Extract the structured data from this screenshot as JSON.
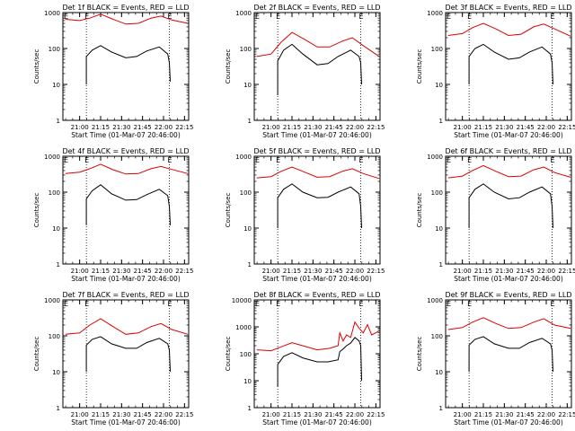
{
  "figure": {
    "ylabel": "Counts/sec",
    "xlabel": "Start Time (01-Mar-07 20:46:00)",
    "marker_label": "E",
    "x_tick_labels": [
      "21:00",
      "21:15",
      "21:30",
      "21:45",
      "22:00",
      "22:15"
    ],
    "colors": {
      "events": "#000000",
      "lld": "#dd0000",
      "axes": "#000000",
      "background": "#ffffff"
    }
  },
  "chart_data": [
    {
      "type": "line",
      "title": "Det 1f BLACK = Events, RED = LLD",
      "ylim": [
        1,
        1000
      ],
      "yscale": "log",
      "y_tick_labels": [
        "1",
        "10",
        "100",
        "1000"
      ],
      "xlim": [
        20.8,
        22.3
      ],
      "x_tick_values": [
        21.0,
        21.25,
        21.5,
        21.75,
        22.0,
        22.25
      ],
      "vlines": [
        21.08,
        22.07
      ],
      "series": [
        {
          "name": "Events",
          "color": "#000000",
          "x": [
            21.08,
            21.08,
            21.15,
            21.25,
            21.38,
            21.55,
            21.68,
            21.8,
            21.95,
            22.05,
            22.07,
            22.08
          ],
          "y": [
            10,
            60,
            90,
            120,
            80,
            55,
            60,
            85,
            110,
            70,
            40,
            12
          ]
        },
        {
          "name": "LLD",
          "color": "#dd0000",
          "x": [
            20.83,
            21.0,
            21.12,
            21.25,
            21.4,
            21.55,
            21.7,
            21.85,
            21.97,
            22.1,
            22.29
          ],
          "y": [
            650,
            600,
            700,
            900,
            650,
            480,
            500,
            700,
            800,
            620,
            500
          ]
        }
      ]
    },
    {
      "type": "line",
      "title": "Det 2f BLACK = Events, RED = LLD",
      "ylim": [
        1,
        1000
      ],
      "yscale": "log",
      "y_tick_labels": [
        "1",
        "10",
        "100",
        "1000"
      ],
      "xlim": [
        20.8,
        22.3
      ],
      "x_tick_values": [
        21.0,
        21.25,
        21.5,
        21.75,
        22.0,
        22.25
      ],
      "vlines": [
        21.08,
        22.07
      ],
      "series": [
        {
          "name": "Events",
          "color": "#000000",
          "x": [
            21.08,
            21.08,
            21.15,
            21.25,
            21.38,
            21.55,
            21.68,
            21.8,
            21.95,
            22.05,
            22.07,
            22.08
          ],
          "y": [
            5,
            45,
            90,
            130,
            70,
            35,
            38,
            60,
            90,
            60,
            40,
            10
          ]
        },
        {
          "name": "LLD",
          "color": "#dd0000",
          "x": [
            20.83,
            21.0,
            21.12,
            21.25,
            21.4,
            21.55,
            21.7,
            21.85,
            21.97,
            22.1,
            22.29
          ],
          "y": [
            60,
            70,
            150,
            280,
            180,
            110,
            110,
            160,
            200,
            120,
            60
          ]
        }
      ]
    },
    {
      "type": "line",
      "title": "Det 3f BLACK = Events, RED = LLD",
      "ylim": [
        1,
        1000
      ],
      "yscale": "log",
      "y_tick_labels": [
        "1",
        "10",
        "100",
        "1000"
      ],
      "xlim": [
        20.8,
        22.3
      ],
      "x_tick_values": [
        21.0,
        21.25,
        21.5,
        21.75,
        22.0,
        22.25
      ],
      "vlines": [
        21.08,
        22.07
      ],
      "series": [
        {
          "name": "Events",
          "color": "#000000",
          "x": [
            21.08,
            21.08,
            21.15,
            21.25,
            21.38,
            21.55,
            21.68,
            21.8,
            21.95,
            22.05,
            22.07,
            22.08
          ],
          "y": [
            10,
            60,
            100,
            130,
            80,
            50,
            55,
            80,
            110,
            70,
            40,
            10
          ]
        },
        {
          "name": "LLD",
          "color": "#dd0000",
          "x": [
            20.83,
            21.0,
            21.12,
            21.25,
            21.4,
            21.55,
            21.7,
            21.85,
            21.97,
            22.1,
            22.29
          ],
          "y": [
            230,
            260,
            380,
            500,
            350,
            230,
            250,
            400,
            480,
            350,
            220
          ]
        }
      ]
    },
    {
      "type": "line",
      "title": "Det 4f BLACK = Events, RED = LLD",
      "ylim": [
        1,
        1000
      ],
      "yscale": "log",
      "y_tick_labels": [
        "1",
        "10",
        "100",
        "1000"
      ],
      "xlim": [
        20.8,
        22.3
      ],
      "x_tick_values": [
        21.0,
        21.25,
        21.5,
        21.75,
        22.0,
        22.25
      ],
      "vlines": [
        21.08,
        22.07
      ],
      "series": [
        {
          "name": "Events",
          "color": "#000000",
          "x": [
            21.08,
            21.08,
            21.15,
            21.25,
            21.38,
            21.55,
            21.68,
            21.8,
            21.95,
            22.05,
            22.07,
            22.08
          ],
          "y": [
            12,
            65,
            110,
            160,
            90,
            60,
            62,
            85,
            120,
            80,
            40,
            12
          ]
        },
        {
          "name": "LLD",
          "color": "#dd0000",
          "x": [
            20.83,
            21.0,
            21.12,
            21.25,
            21.4,
            21.55,
            21.7,
            21.85,
            21.97,
            22.1,
            22.29
          ],
          "y": [
            330,
            360,
            450,
            600,
            420,
            320,
            330,
            450,
            520,
            430,
            330
          ]
        }
      ]
    },
    {
      "type": "line",
      "title": "Det 5f BLACK = Events, RED = LLD",
      "ylim": [
        1,
        1000
      ],
      "yscale": "log",
      "y_tick_labels": [
        "1",
        "10",
        "100",
        "1000"
      ],
      "xlim": [
        20.8,
        22.3
      ],
      "x_tick_values": [
        21.0,
        21.25,
        21.5,
        21.75,
        22.0,
        22.25
      ],
      "vlines": [
        21.08,
        22.07
      ],
      "series": [
        {
          "name": "Events",
          "color": "#000000",
          "x": [
            21.08,
            21.08,
            21.15,
            21.25,
            21.38,
            21.55,
            21.68,
            21.8,
            21.95,
            22.05,
            22.07,
            22.08
          ],
          "y": [
            10,
            70,
            120,
            170,
            100,
            70,
            72,
            100,
            140,
            90,
            40,
            10
          ]
        },
        {
          "name": "LLD",
          "color": "#dd0000",
          "x": [
            20.83,
            21.0,
            21.12,
            21.25,
            21.4,
            21.55,
            21.7,
            21.85,
            21.97,
            22.1,
            22.29
          ],
          "y": [
            250,
            270,
            380,
            500,
            360,
            260,
            270,
            380,
            450,
            330,
            240
          ]
        }
      ]
    },
    {
      "type": "line",
      "title": "Det 6f BLACK = Events, RED = LLD",
      "ylim": [
        1,
        1000
      ],
      "yscale": "log",
      "y_tick_labels": [
        "1",
        "10",
        "100",
        "1000"
      ],
      "xlim": [
        20.8,
        22.3
      ],
      "x_tick_values": [
        21.0,
        21.25,
        21.5,
        21.75,
        22.0,
        22.25
      ],
      "vlines": [
        21.08,
        22.07
      ],
      "series": [
        {
          "name": "Events",
          "color": "#000000",
          "x": [
            21.08,
            21.08,
            21.15,
            21.25,
            21.38,
            21.55,
            21.68,
            21.8,
            21.95,
            22.05,
            22.07,
            22.08
          ],
          "y": [
            10,
            70,
            120,
            170,
            100,
            65,
            70,
            100,
            140,
            90,
            40,
            10
          ]
        },
        {
          "name": "LLD",
          "color": "#dd0000",
          "x": [
            20.83,
            21.0,
            21.12,
            21.25,
            21.4,
            21.55,
            21.7,
            21.85,
            21.97,
            22.1,
            22.29
          ],
          "y": [
            250,
            280,
            400,
            550,
            380,
            270,
            280,
            420,
            500,
            350,
            260
          ]
        }
      ]
    },
    {
      "type": "line",
      "title": "Det 7f BLACK = Events, RED = LLD",
      "ylim": [
        1,
        1000
      ],
      "yscale": "log",
      "y_tick_labels": [
        "1",
        "10",
        "100",
        "1000"
      ],
      "xlim": [
        20.8,
        22.3
      ],
      "x_tick_values": [
        21.0,
        21.25,
        21.5,
        21.75,
        22.0,
        22.25
      ],
      "vlines": [
        21.08,
        22.07
      ],
      "series": [
        {
          "name": "Events",
          "color": "#000000",
          "x": [
            21.08,
            21.08,
            21.15,
            21.25,
            21.38,
            21.55,
            21.68,
            21.8,
            21.95,
            22.05,
            22.07,
            22.08
          ],
          "y": [
            10,
            55,
            80,
            95,
            60,
            45,
            45,
            65,
            85,
            60,
            40,
            10
          ]
        },
        {
          "name": "LLD",
          "color": "#dd0000",
          "x": [
            20.83,
            21.0,
            21.12,
            21.25,
            21.4,
            21.55,
            21.7,
            21.85,
            21.97,
            22.1,
            22.29
          ],
          "y": [
            110,
            120,
            200,
            300,
            180,
            110,
            120,
            180,
            220,
            150,
            110
          ]
        }
      ]
    },
    {
      "type": "line",
      "title": "Det 8f BLACK = Events, RED = LLD",
      "ylim": [
        1,
        10000
      ],
      "yscale": "log",
      "y_tick_labels": [
        "1",
        "10",
        "100",
        "1000",
        "10000"
      ],
      "xlim": [
        20.8,
        22.3
      ],
      "x_tick_values": [
        21.0,
        21.25,
        21.5,
        21.75,
        22.0,
        22.25
      ],
      "vlines": [
        21.08,
        22.07
      ],
      "series": [
        {
          "name": "Events",
          "color": "#000000",
          "x": [
            21.08,
            21.08,
            21.15,
            21.25,
            21.38,
            21.55,
            21.68,
            21.8,
            21.82,
            21.86,
            21.9,
            21.95,
            22.0,
            22.05,
            22.07,
            22.08
          ],
          "y": [
            6,
            40,
            80,
            110,
            70,
            50,
            50,
            60,
            120,
            150,
            200,
            250,
            400,
            300,
            200,
            10
          ]
        },
        {
          "name": "LLD",
          "color": "#dd0000",
          "x": [
            20.83,
            21.0,
            21.12,
            21.25,
            21.4,
            21.55,
            21.7,
            21.8,
            21.82,
            21.86,
            21.9,
            21.95,
            22.0,
            22.05,
            22.1,
            22.15,
            22.2,
            22.29
          ],
          "y": [
            140,
            130,
            180,
            260,
            190,
            140,
            160,
            200,
            600,
            300,
            500,
            400,
            1500,
            900,
            600,
            1200,
            500,
            700
          ]
        }
      ]
    },
    {
      "type": "line",
      "title": "Det 9f BLACK = Events, RED = LLD",
      "ylim": [
        1,
        1000
      ],
      "yscale": "log",
      "y_tick_labels": [
        "1",
        "10",
        "100",
        "1000"
      ],
      "xlim": [
        20.8,
        22.3
      ],
      "x_tick_values": [
        21.0,
        21.25,
        21.5,
        21.75,
        22.0,
        22.25
      ],
      "vlines": [
        21.08,
        22.07
      ],
      "series": [
        {
          "name": "Events",
          "color": "#000000",
          "x": [
            21.08,
            21.08,
            21.15,
            21.25,
            21.38,
            21.55,
            21.68,
            21.8,
            21.95,
            22.05,
            22.07,
            22.08
          ],
          "y": [
            10,
            55,
            80,
            95,
            60,
            45,
            45,
            65,
            85,
            60,
            40,
            10
          ]
        },
        {
          "name": "LLD",
          "color": "#dd0000",
          "x": [
            20.83,
            21.0,
            21.12,
            21.25,
            21.4,
            21.55,
            21.7,
            21.85,
            21.97,
            22.1,
            22.29
          ],
          "y": [
            150,
            170,
            240,
            320,
            220,
            160,
            170,
            240,
            300,
            200,
            160
          ]
        }
      ]
    }
  ]
}
